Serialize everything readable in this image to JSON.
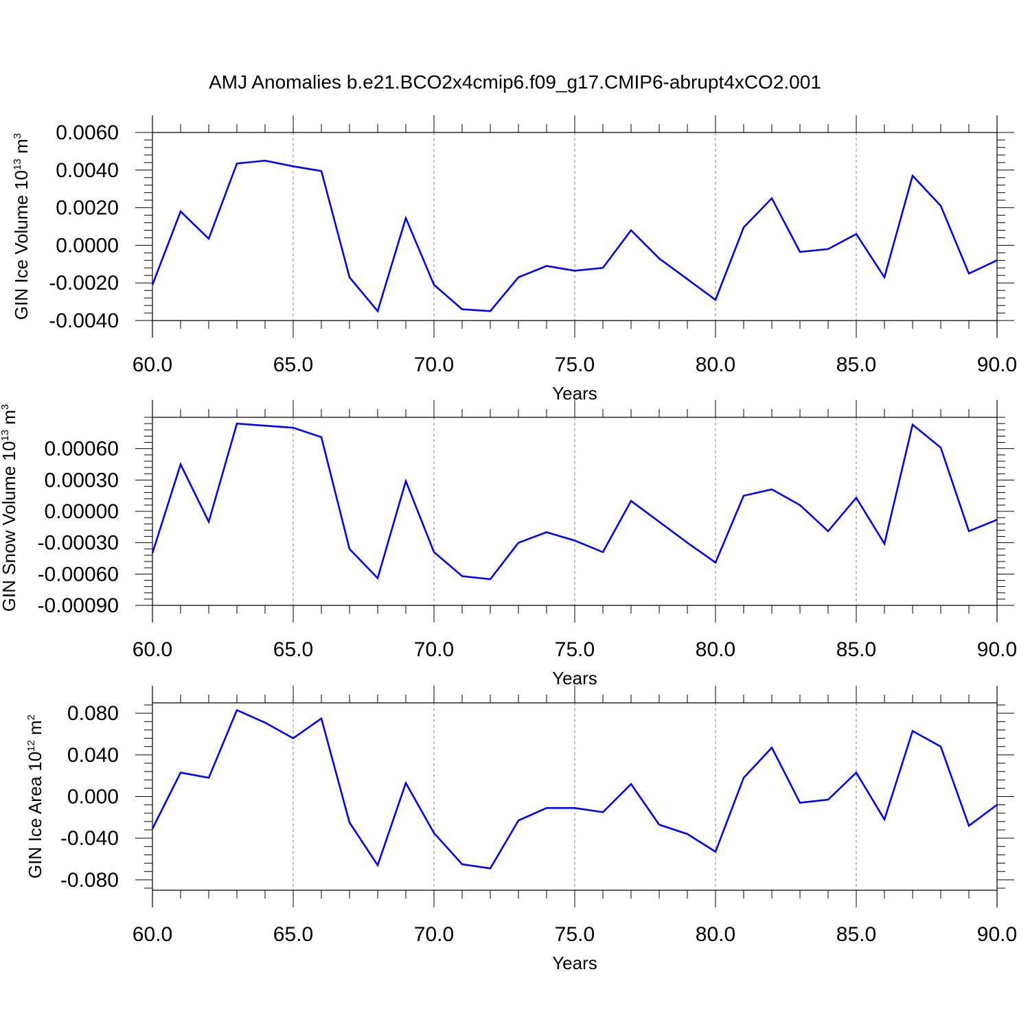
{
  "figure": {
    "title": "AMJ Anomalies b.e21.BCO2x4cmip6.f09_g17.CMIP6-abrupt4xCO2.001",
    "line_color": "#0000ff",
    "grid_color": "#808080"
  },
  "chart_data": [
    {
      "type": "line",
      "title": "",
      "xlabel": "Years",
      "ylabel": "GIN Ice Volume 10",
      "ylabel_sup": "13",
      "ylabel_unit": "m",
      "ylabel_unit_sup": "3",
      "xlim": [
        60,
        90
      ],
      "ylim": [
        -0.004,
        0.006
      ],
      "x_ticks": [
        60,
        65,
        70,
        75,
        80,
        85,
        90
      ],
      "x_tick_labels": [
        "60.0",
        "65.0",
        "70.0",
        "75.0",
        "80.0",
        "85.0",
        "90.0"
      ],
      "y_ticks": [
        -0.004,
        -0.002,
        0.0,
        0.002,
        0.004,
        0.006
      ],
      "y_tick_labels": [
        "-0.0040",
        "-0.0020",
        "0.0000",
        "0.0020",
        "0.0040",
        "0.0060"
      ],
      "grid": "vertical dashed at major x ticks",
      "series": [
        {
          "x": [
            60,
            61,
            62,
            63,
            64,
            65,
            66,
            67,
            68,
            69,
            70,
            71,
            72,
            73,
            74,
            75,
            76,
            77,
            78,
            79,
            80,
            81,
            82,
            83,
            84,
            85,
            86,
            87,
            88,
            89,
            90
          ],
          "values": [
            -0.0021,
            0.0018,
            0.00035,
            0.00435,
            0.0045,
            0.0042,
            0.00395,
            -0.0017,
            -0.0035,
            0.00145,
            -0.0021,
            -0.0034,
            -0.0035,
            -0.0017,
            -0.0011,
            -0.00135,
            -0.0012,
            0.0008,
            -0.0007,
            -0.0018,
            -0.0029,
            0.00095,
            0.0025,
            -0.00035,
            -0.0002,
            0.0006,
            -0.0017,
            0.0037,
            0.0021,
            -0.0015,
            -0.0008
          ]
        }
      ]
    },
    {
      "type": "line",
      "title": "",
      "xlabel": "Years",
      "ylabel": "GIN Snow Volume 10",
      "ylabel_sup": "13",
      "ylabel_unit": "m",
      "ylabel_unit_sup": "3",
      "xlim": [
        60,
        90
      ],
      "ylim": [
        -0.0009,
        0.0009
      ],
      "x_ticks": [
        60,
        65,
        70,
        75,
        80,
        85,
        90
      ],
      "x_tick_labels": [
        "60.0",
        "65.0",
        "70.0",
        "75.0",
        "80.0",
        "85.0",
        "90.0"
      ],
      "y_ticks": [
        -0.0009,
        -0.0006,
        -0.0003,
        0.0,
        0.0003,
        0.0006
      ],
      "y_tick_labels": [
        "-0.00090",
        "-0.00060",
        "-0.00030",
        "0.00000",
        "0.00030",
        "0.00060"
      ],
      "grid": "vertical dashed at major x ticks",
      "series": [
        {
          "x": [
            60,
            61,
            62,
            63,
            64,
            65,
            66,
            67,
            68,
            69,
            70,
            71,
            72,
            73,
            74,
            75,
            76,
            77,
            78,
            79,
            80,
            81,
            82,
            83,
            84,
            85,
            86,
            87,
            88,
            89,
            90
          ],
          "values": [
            -0.0004,
            0.00045,
            -0.0001,
            0.00084,
            0.00082,
            0.0008,
            0.00071,
            -0.00036,
            -0.00064,
            0.00029,
            -0.00039,
            -0.00062,
            -0.00065,
            -0.0003,
            -0.0002,
            -0.00028,
            -0.00039,
            0.0001,
            -0.0001,
            -0.0003,
            -0.00049,
            0.00015,
            0.00021,
            6e-05,
            -0.00019,
            0.00013,
            -0.00031,
            0.00083,
            0.00061,
            -0.00019,
            -8e-05
          ]
        }
      ]
    },
    {
      "type": "line",
      "title": "",
      "xlabel": "Years",
      "ylabel": "GIN Ice Area 10",
      "ylabel_sup": "12",
      "ylabel_unit": "m",
      "ylabel_unit_sup": "2",
      "xlim": [
        60,
        90
      ],
      "ylim": [
        -0.09,
        0.09
      ],
      "x_ticks": [
        60,
        65,
        70,
        75,
        80,
        85,
        90
      ],
      "x_tick_labels": [
        "60.0",
        "65.0",
        "70.0",
        "75.0",
        "80.0",
        "85.0",
        "90.0"
      ],
      "y_ticks": [
        -0.08,
        -0.04,
        0.0,
        0.04,
        0.08
      ],
      "y_tick_labels": [
        "-0.080",
        "-0.040",
        "0.000",
        "0.040",
        "0.080"
      ],
      "grid": "vertical dashed at major x ticks",
      "series": [
        {
          "x": [
            60,
            61,
            62,
            63,
            64,
            65,
            66,
            67,
            68,
            69,
            70,
            71,
            72,
            73,
            74,
            75,
            76,
            77,
            78,
            79,
            80,
            81,
            82,
            83,
            84,
            85,
            86,
            87,
            88,
            89,
            90
          ],
          "values": [
            -0.031,
            0.023,
            0.018,
            0.083,
            0.071,
            0.056,
            0.075,
            -0.025,
            -0.066,
            0.013,
            -0.035,
            -0.065,
            -0.069,
            -0.023,
            -0.011,
            -0.011,
            -0.015,
            0.012,
            -0.027,
            -0.036,
            -0.053,
            0.018,
            0.047,
            -0.006,
            -0.003,
            0.023,
            -0.022,
            0.063,
            0.048,
            -0.028,
            -0.008
          ]
        }
      ]
    }
  ]
}
